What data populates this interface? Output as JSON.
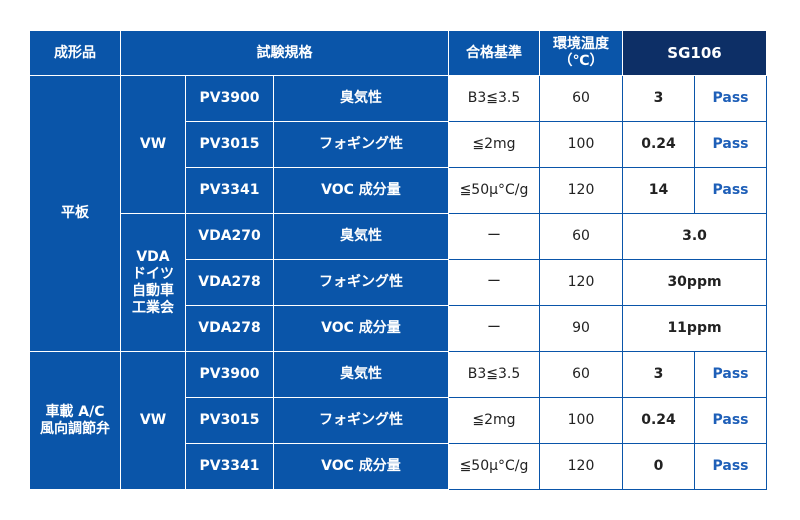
{
  "header": {
    "product_form": "成形品",
    "test_spec": "試験規格",
    "criteria": "合格基準",
    "temp_line1": "環境温度",
    "temp_line2": "（℃）",
    "product": "SG106"
  },
  "groups": {
    "flat": "平板",
    "vw": "VW",
    "vda": [
      "VDA",
      "ドイツ",
      "自動車",
      "工業会"
    ],
    "dist_line1": "車載 A/C",
    "dist_line2": "風向調節弁"
  },
  "rows": [
    {
      "code": "PV3900",
      "test": "臭気性",
      "criteria": "B3≦3.5",
      "temp": "60",
      "value": "3",
      "result": "Pass"
    },
    {
      "code": "PV3015",
      "test": "フォギング性",
      "criteria": "≦2mg",
      "temp": "100",
      "value": "0.24",
      "result": "Pass"
    },
    {
      "code": "PV3341",
      "test": "VOC 成分量",
      "criteria": "≦50μ°C/g",
      "temp": "120",
      "value": "14",
      "result": "Pass"
    },
    {
      "code": "VDA270",
      "test": "臭気性",
      "criteria": "ー",
      "temp": "60",
      "value": "3.0"
    },
    {
      "code": "VDA278",
      "test": "フォギング性",
      "criteria": "ー",
      "temp": "120",
      "value": "30ppm"
    },
    {
      "code": "VDA278",
      "test": "VOC 成分量",
      "criteria": "ー",
      "temp": "90",
      "value": "11ppm"
    },
    {
      "code": "PV3900",
      "test": "臭気性",
      "criteria": "B3≦3.5",
      "temp": "60",
      "value": "3",
      "result": "Pass"
    },
    {
      "code": "PV3015",
      "test": "フォギング性",
      "criteria": "≦2mg",
      "temp": "100",
      "value": "0.24",
      "result": "Pass"
    },
    {
      "code": "PV3341",
      "test": "VOC 成分量",
      "criteria": "≦50μ°C/g",
      "temp": "120",
      "value": "0",
      "result": "Pass"
    }
  ]
}
